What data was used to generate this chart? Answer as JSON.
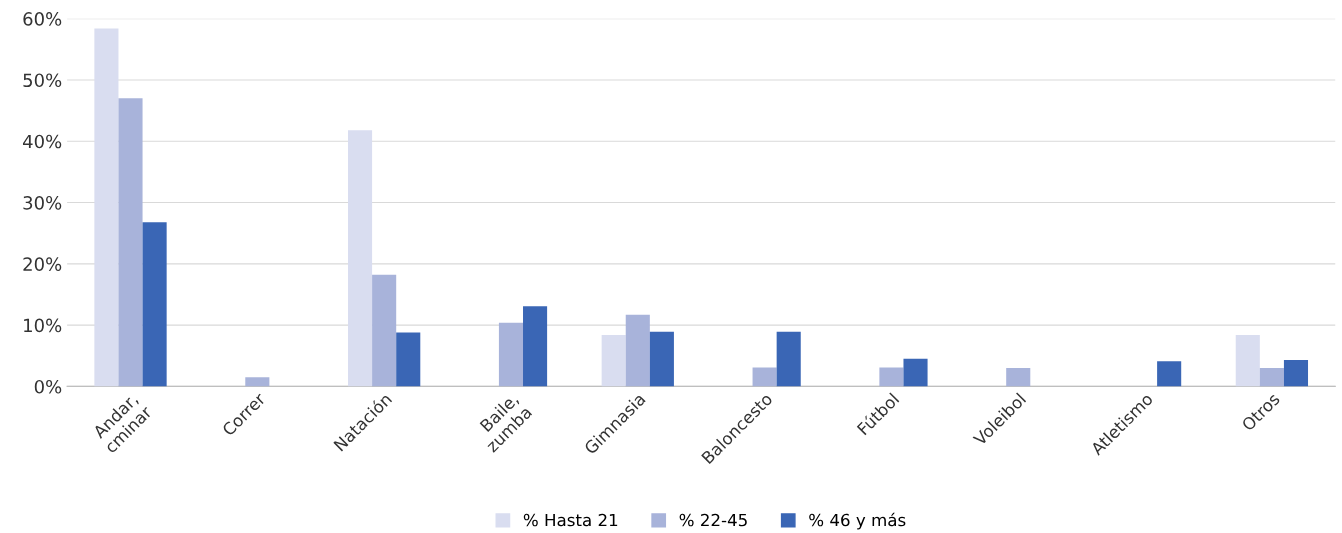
{
  "chart_data": {
    "type": "bar",
    "categories": [
      "Andar,\ncminar",
      "Correr",
      "Natación",
      "Baile,\nzumba",
      "Gimnasia",
      "Baloncesto",
      "Fútbol",
      "Voleibol",
      "Atletismo",
      "Otros"
    ],
    "series": [
      {
        "name": "% Hasta 21",
        "color": "#d9ddf0",
        "values": [
          58.4,
          null,
          41.8,
          null,
          8.4,
          null,
          null,
          null,
          null,
          8.4
        ]
      },
      {
        "name": "% 22-45",
        "color": "#a8b3da",
        "values": [
          47.0,
          1.5,
          18.2,
          10.4,
          11.7,
          3.1,
          3.1,
          3.0,
          null,
          3.0
        ]
      },
      {
        "name": "% 46 y más",
        "color": "#3a66b5",
        "values": [
          26.8,
          null,
          8.8,
          13.1,
          8.9,
          8.9,
          4.5,
          null,
          4.1,
          4.3
        ]
      }
    ],
    "ylim": [
      0,
      60
    ],
    "yticks": [
      {
        "value": 0,
        "label": "0%"
      },
      {
        "value": 10,
        "label": "10%"
      },
      {
        "value": 20,
        "label": "20%"
      },
      {
        "value": 30,
        "label": "30%"
      },
      {
        "value": 40,
        "label": "40%"
      },
      {
        "value": 50,
        "label": "50%"
      },
      {
        "value": 60,
        "label": "60%"
      }
    ],
    "grid": "y",
    "legend": "bottom"
  }
}
